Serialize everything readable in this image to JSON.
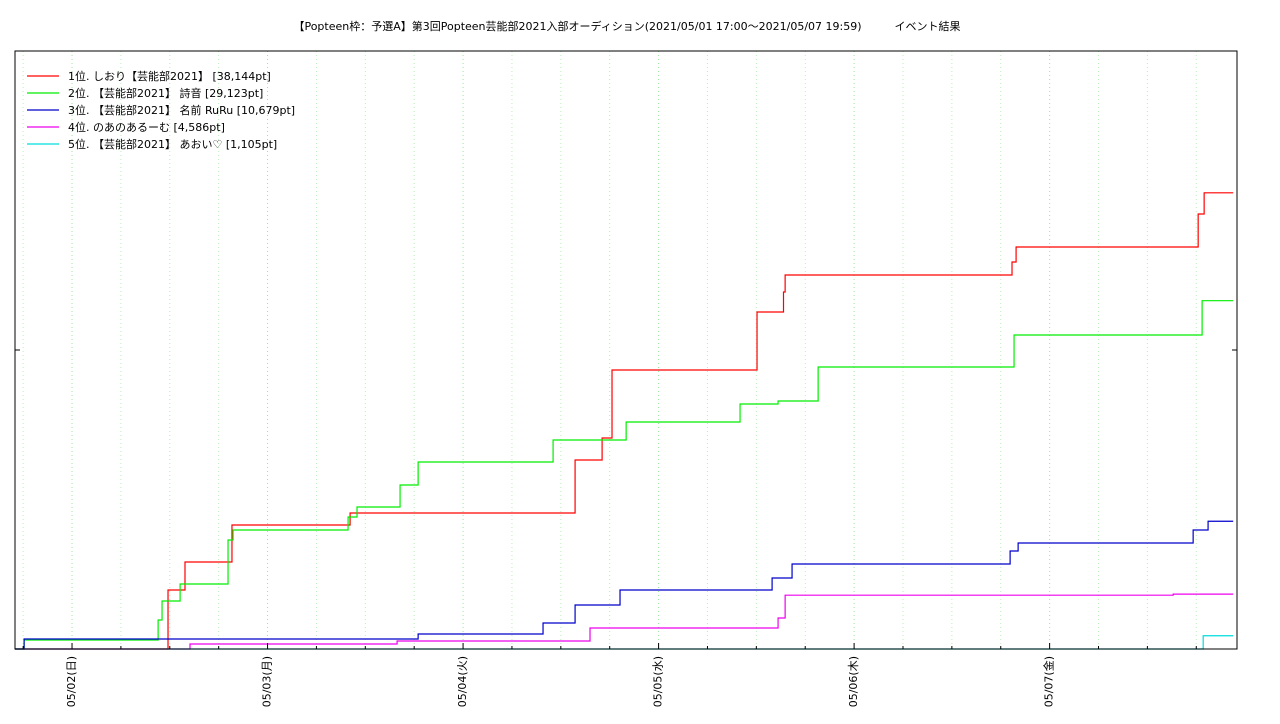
{
  "chart_data": {
    "type": "line",
    "title": "【Popteen枠：予選A】第3回Popteen芸能部2021入部オーディション(2021/05/01 17:00～2021/05/07 19:59)　　　イベント結果",
    "xlim": [
      "05/01 17:00",
      "05/07 23:00"
    ],
    "xticks": [
      {
        "value": "05/02 00:00",
        "label": "05/02(日)"
      },
      {
        "value": "05/03 00:00",
        "label": "05/03(月)"
      },
      {
        "value": "05/04 00:00",
        "label": "05/04(火)"
      },
      {
        "value": "05/05 00:00",
        "label": "05/05(水)"
      },
      {
        "value": "05/06 00:00",
        "label": "05/06(木)"
      },
      {
        "value": "05/07 00:00",
        "label": "05/07(金)"
      }
    ],
    "x_minor_ticks": [
      "05/01 18:00",
      "05/02 06:00",
      "05/02 12:00",
      "05/02 18:00",
      "05/03 06:00",
      "05/03 12:00",
      "05/03 18:00",
      "05/04 06:00",
      "05/04 12:00",
      "05/04 18:00",
      "05/05 06:00",
      "05/05 12:00",
      "05/05 18:00",
      "05/06 06:00",
      "05/06 12:00",
      "05/06 18:00",
      "05/07 06:00",
      "05/07 12:00",
      "05/07 18:00"
    ],
    "ylim": [
      0,
      50000
    ],
    "yticks": [
      0,
      25000,
      50000
    ],
    "grid": true,
    "step": true,
    "legend": "upper-left",
    "series": [
      {
        "name": "1位. しおり【芸能部2021】 [38,144pt]",
        "color": "#ff0000",
        "x": [
          "05/01 17:00",
          "05/02 11:47",
          "05/02 13:52",
          "05/02 19:38",
          "05/03 10:08",
          "05/04 13:45",
          "05/04 17:04",
          "05/04 18:17",
          "05/05 12:05",
          "05/05 15:20",
          "05/05 15:32",
          "05/06 19:23",
          "05/06 19:53",
          "05/07 18:14",
          "05/07 18:58",
          "05/07 22:32"
        ],
        "values": [
          0,
          4933,
          7274,
          10368,
          11371,
          15802,
          17642,
          23327,
          28177,
          29849,
          31270,
          32357,
          33612,
          36370,
          38144,
          38144
        ]
      },
      {
        "name": "2位. 【芸能部2021】 詩音 [29,123pt]",
        "color": "#00ee00",
        "x": [
          "05/01 17:00",
          "05/01 18:07",
          "05/02 10:34",
          "05/02 11:03",
          "05/02 13:16",
          "05/02 19:09",
          "05/02 19:46",
          "05/03 09:53",
          "05/03 10:59",
          "05/03 16:16",
          "05/03 18:29",
          "05/04 11:03",
          "05/04 20:01",
          "05/05 10:00",
          "05/05 14:40",
          "05/05 19:35",
          "05/06 19:38",
          "05/07 18:43",
          "05/07 22:32"
        ],
        "values": [
          0,
          752,
          2425,
          4013,
          5435,
          9114,
          9950,
          11037,
          11873,
          13712,
          15635,
          17475,
          18980,
          20485,
          20736,
          23578,
          26254,
          29123,
          29123
        ]
      },
      {
        "name": "3位. 【芸能部2021】 名前 RuRu [10,679pt]",
        "color": "#0000cc",
        "x": [
          "05/01 17:00",
          "05/01 18:07",
          "05/03 18:29",
          "05/04 09:49",
          "05/04 13:45",
          "05/04 19:16",
          "05/05 13:56",
          "05/05 16:23",
          "05/06 19:09",
          "05/06 20:08",
          "05/07 17:37",
          "05/07 19:27",
          "05/07 22:32"
        ],
        "values": [
          0,
          836,
          1254,
          2174,
          3679,
          4933,
          5936,
          7107,
          8194,
          8863,
          9950,
          10679,
          10679
        ]
      },
      {
        "name": "4位. のあのあるーむ [4,586pt]",
        "color": "#ee00ee",
        "x": [
          "05/01 17:00",
          "05/02 14:29",
          "05/03 15:54",
          "05/04 15:35",
          "05/05 14:40",
          "05/05 15:32",
          "05/07 15:10",
          "05/07 22:32"
        ],
        "values": [
          0,
          418,
          669,
          1756,
          2592,
          4500,
          4586,
          4586
        ]
      },
      {
        "name": "5位. 【芸能部2021】 あおい♡ [1,105pt]",
        "color": "#00dddd",
        "x": [
          "05/01 17:00",
          "05/07 18:51",
          "05/07 22:32"
        ],
        "values": [
          0,
          1105,
          1105
        ]
      }
    ]
  }
}
